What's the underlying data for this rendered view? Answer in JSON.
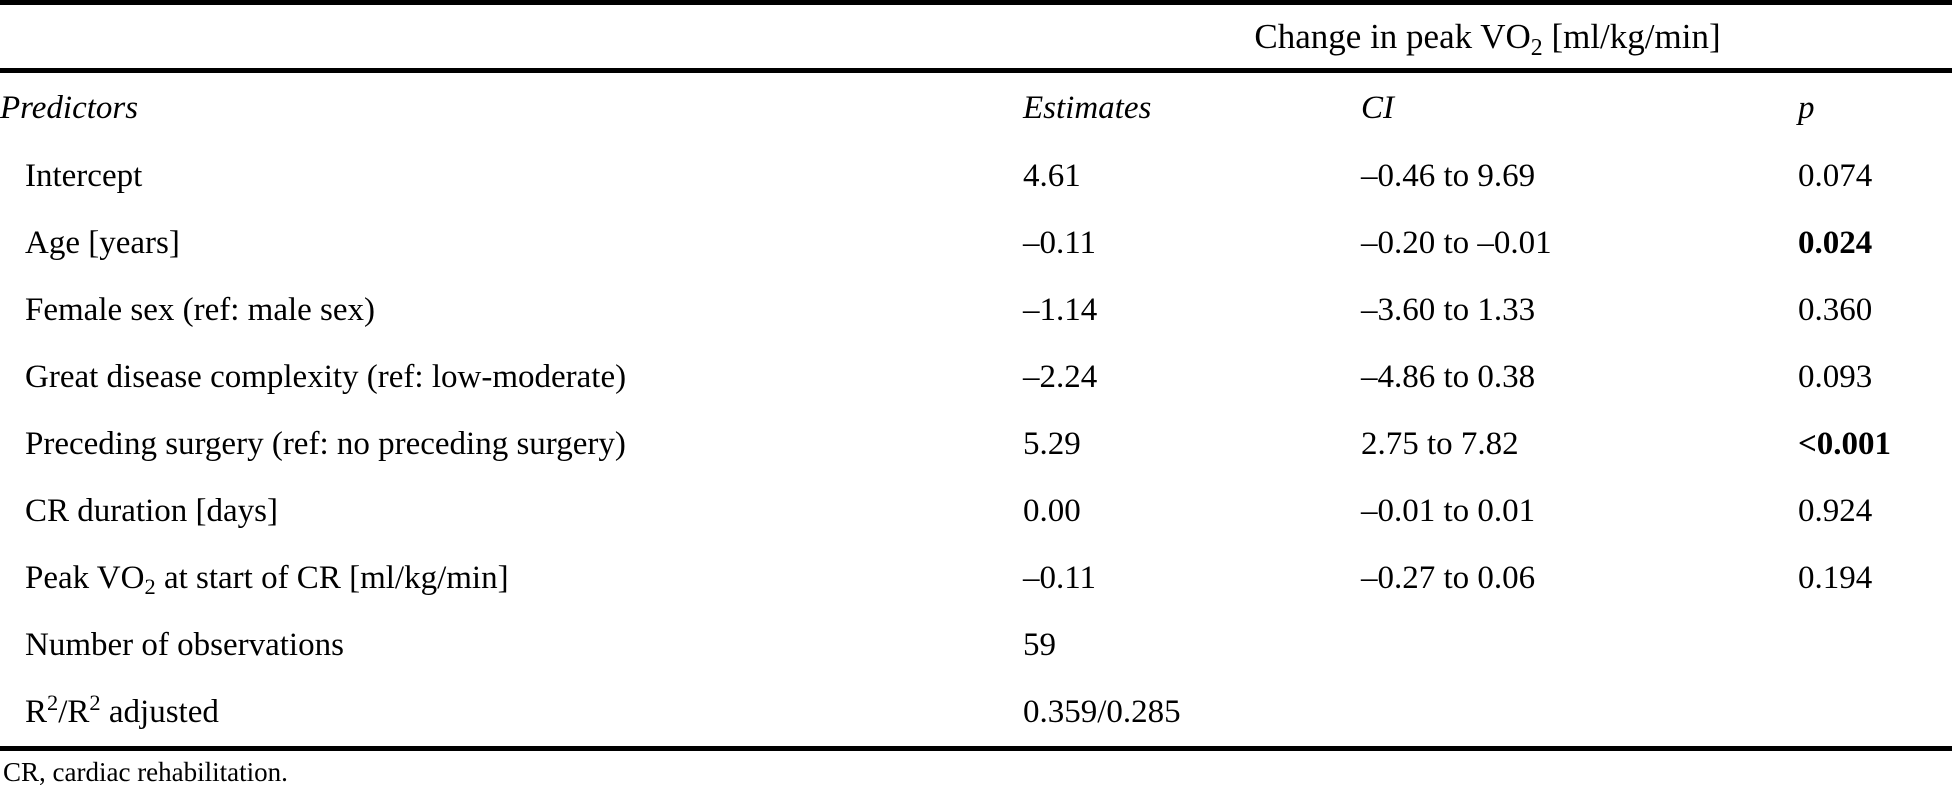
{
  "table": {
    "spanner": {
      "pre": "Change in peak VO",
      "sub": "2",
      "post": " [ml/kg/min]"
    },
    "columns": {
      "predictors": "Predictors",
      "estimates": "Estimates",
      "ci": "CI",
      "p": "p"
    },
    "rows": [
      {
        "label": "Intercept",
        "estimate": "4.61",
        "ci": "–0.46 to 9.69",
        "p": "0.074",
        "p_bold": false
      },
      {
        "label": "Age [years]",
        "estimate": "–0.11",
        "ci": "–0.20 to –0.01",
        "p": "0.024",
        "p_bold": true
      },
      {
        "label": "Female sex (ref: male sex)",
        "estimate": "–1.14",
        "ci": "–3.60 to 1.33",
        "p": "0.360",
        "p_bold": false
      },
      {
        "label": "Great disease complexity (ref: low-moderate)",
        "estimate": "–2.24",
        "ci": "–4.86 to 0.38",
        "p": "0.093",
        "p_bold": false
      },
      {
        "label": "Preceding surgery (ref: no preceding surgery)",
        "estimate": "5.29",
        "ci": "2.75 to 7.82",
        "p": "<0.001",
        "p_bold": true
      },
      {
        "label": "CR duration [days]",
        "estimate": "0.00",
        "ci": "–0.01 to 0.01",
        "p": "0.924",
        "p_bold": false
      },
      {
        "label_pre": "Peak VO",
        "label_sub": "2",
        "label_post": " at start of CR [ml/kg/min]",
        "estimate": "–0.11",
        "ci": "–0.27 to 0.06",
        "p": "0.194",
        "p_bold": false
      },
      {
        "label": "Number of observations",
        "estimate": "59",
        "ci": "",
        "p": "",
        "p_bold": false
      },
      {
        "label_r1": "R",
        "label_sup1": "2",
        "label_mid": "/R",
        "label_sup2": "2",
        "label_post": " adjusted",
        "estimate": "0.359/0.285",
        "ci": "",
        "p": "",
        "p_bold": false
      }
    ],
    "footnote": "CR, cardiac rehabilitation."
  }
}
